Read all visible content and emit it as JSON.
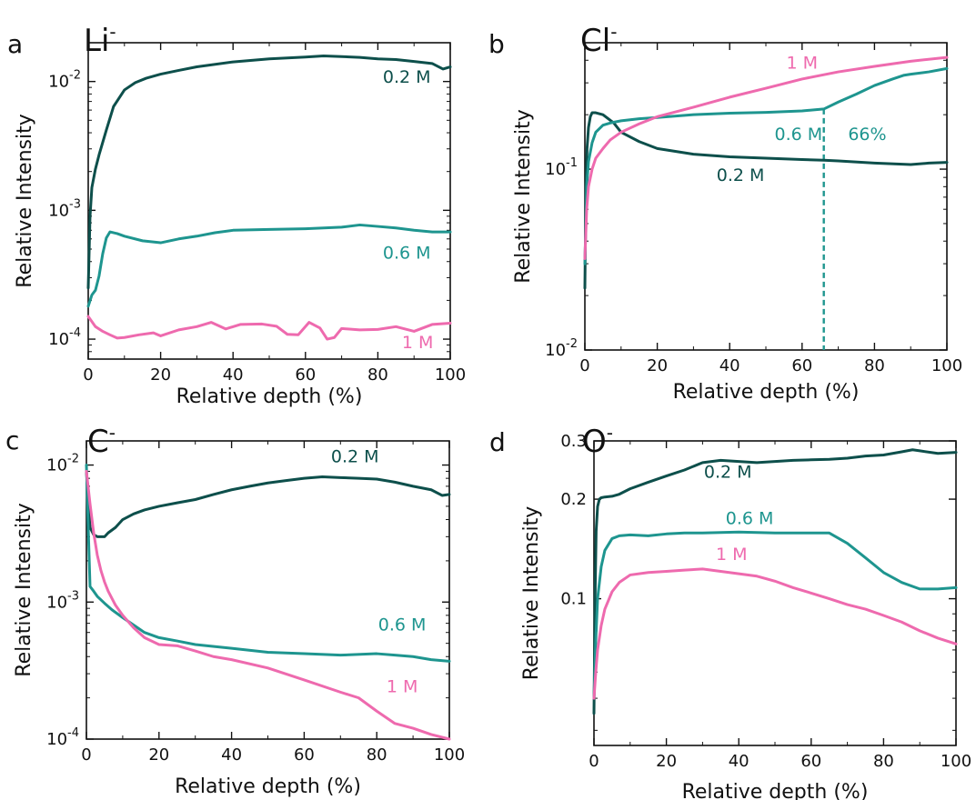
{
  "colors": {
    "0.2 M": "#0d4f4b",
    "0.6 M": "#1e958f",
    "1 M": "#ee6aae"
  },
  "chart_data": [
    {
      "type": "line",
      "panel": "a",
      "ion": "Li",
      "ion_sup": "-",
      "xlabel": "Relative depth (%)",
      "ylabel": "Relative Intensity",
      "xlim": [
        0,
        100
      ],
      "ylim": [
        7e-05,
        0.02
      ],
      "yscale": "log",
      "xticks": [
        0,
        20,
        40,
        60,
        80,
        100
      ],
      "yticks": [
        0.0001,
        0.001,
        0.01
      ],
      "ytick_labels": [
        {
          "base": "10",
          "exp": "-4"
        },
        {
          "base": "10",
          "exp": "-3"
        },
        {
          "base": "10",
          "exp": "-2"
        }
      ],
      "series": [
        {
          "name": "0.2 M",
          "x": [
            0,
            0.5,
            1,
            2,
            3,
            5,
            7,
            10,
            13,
            16,
            20,
            25,
            30,
            40,
            50,
            60,
            65,
            70,
            75,
            80,
            85,
            90,
            95,
            98,
            100
          ],
          "y": [
            0.00025,
            0.0009,
            0.0015,
            0.0021,
            0.0027,
            0.0042,
            0.0064,
            0.0086,
            0.0098,
            0.0106,
            0.0114,
            0.0122,
            0.013,
            0.0142,
            0.015,
            0.0155,
            0.0158,
            0.0156,
            0.0154,
            0.015,
            0.0148,
            0.0143,
            0.0138,
            0.0125,
            0.013
          ]
        },
        {
          "name": "0.6 M",
          "x": [
            0,
            1,
            2,
            3,
            4,
            5,
            6,
            8,
            10,
            15,
            20,
            25,
            30,
            35,
            40,
            50,
            60,
            70,
            75,
            80,
            85,
            90,
            95,
            100
          ],
          "y": [
            0.00018,
            0.00022,
            0.00024,
            0.00031,
            0.00046,
            0.00061,
            0.00068,
            0.00066,
            0.00063,
            0.00058,
            0.00056,
            0.0006,
            0.00063,
            0.00067,
            0.0007,
            0.00071,
            0.00072,
            0.00074,
            0.00077,
            0.00075,
            0.00073,
            0.0007,
            0.00068,
            0.00068
          ]
        },
        {
          "name": "1 M",
          "x": [
            0,
            2,
            4,
            6,
            8,
            10,
            14,
            18,
            20,
            25,
            30,
            34,
            38,
            42,
            48,
            52,
            55,
            58,
            61,
            64,
            66,
            68,
            70,
            75,
            80,
            85,
            90,
            95,
            100
          ],
          "y": [
            0.00015,
            0.000125,
            0.000115,
            0.000108,
            0.000102,
            0.000103,
            0.000108,
            0.000112,
            0.000106,
            0.000118,
            0.000125,
            0.000135,
            0.00012,
            0.00013,
            0.000131,
            0.000126,
            0.000109,
            0.000108,
            0.000135,
            0.000122,
            0.0001,
            0.000103,
            0.000121,
            0.000118,
            0.000119,
            0.000125,
            0.000115,
            0.00013,
            0.000133
          ]
        }
      ],
      "labels": [
        {
          "series": "0.2 M",
          "text": "0.2 M",
          "x": 88,
          "y": 0.0098
        },
        {
          "series": "0.6 M",
          "text": "0.6 M",
          "x": 88,
          "y": 0.00042
        },
        {
          "series": "1 M",
          "text": "1 M",
          "x": 91,
          "y": 8.5e-05
        }
      ]
    },
    {
      "type": "line",
      "panel": "b",
      "ion": "Cl",
      "ion_sup": "-",
      "xlabel": "Relative depth (%)",
      "ylabel": "Relative Intensity",
      "xlim": [
        0,
        100
      ],
      "ylim": [
        0.01,
        0.5
      ],
      "yscale": "log",
      "xticks": [
        0,
        20,
        40,
        60,
        80,
        100
      ],
      "yticks": [
        0.01,
        0.1
      ],
      "ytick_labels": [
        {
          "base": "10",
          "exp": "-2"
        },
        {
          "base": "10",
          "exp": "-1"
        }
      ],
      "series": [
        {
          "name": "0.2 M",
          "x": [
            0,
            0.3,
            0.6,
            1,
            1.5,
            2,
            3,
            5,
            8,
            10,
            15,
            20,
            30,
            40,
            50,
            60,
            66,
            70,
            80,
            90,
            95,
            100
          ],
          "y": [
            0.022,
            0.08,
            0.13,
            0.17,
            0.195,
            0.205,
            0.205,
            0.2,
            0.18,
            0.16,
            0.142,
            0.13,
            0.121,
            0.117,
            0.115,
            0.113,
            0.112,
            0.111,
            0.108,
            0.106,
            0.108,
            0.109
          ]
        },
        {
          "name": "0.6 M",
          "x": [
            0,
            0.5,
            1,
            2,
            3,
            5,
            7,
            10,
            15,
            20,
            30,
            40,
            50,
            60,
            66,
            70,
            75,
            80,
            85,
            88,
            90,
            95,
            100
          ],
          "y": [
            0.03,
            0.08,
            0.11,
            0.14,
            0.16,
            0.175,
            0.18,
            0.185,
            0.19,
            0.193,
            0.2,
            0.204,
            0.206,
            0.21,
            0.215,
            0.235,
            0.26,
            0.29,
            0.315,
            0.33,
            0.335,
            0.345,
            0.36
          ]
        },
        {
          "name": "1 M",
          "x": [
            0,
            0.5,
            1,
            2,
            3,
            5,
            7,
            10,
            15,
            20,
            30,
            40,
            50,
            60,
            70,
            80,
            90,
            100
          ],
          "y": [
            0.032,
            0.06,
            0.08,
            0.1,
            0.115,
            0.13,
            0.145,
            0.16,
            0.178,
            0.195,
            0.22,
            0.25,
            0.28,
            0.315,
            0.345,
            0.37,
            0.395,
            0.415
          ]
        }
      ],
      "markers": [
        {
          "x": 66,
          "text": "66%"
        }
      ],
      "labels": [
        {
          "series": "1 M",
          "text": "1 M",
          "x": 60,
          "y": 0.36
        },
        {
          "series": "0.6 M",
          "text": "0.6 M",
          "x": 59,
          "y": 0.145
        },
        {
          "series": "0.6 M",
          "text": "66%",
          "x": 78,
          "y": 0.145
        },
        {
          "series": "0.2 M",
          "text": "0.2 M",
          "x": 43,
          "y": 0.086
        }
      ]
    },
    {
      "type": "line",
      "panel": "c",
      "ion": "C",
      "ion_sup": "-",
      "xlabel": "Relative depth (%)",
      "ylabel": "Relative Intensity",
      "xlim": [
        0,
        100
      ],
      "ylim": [
        0.0001,
        0.015
      ],
      "yscale": "log",
      "xticks": [
        0,
        20,
        40,
        60,
        80,
        100
      ],
      "yticks": [
        0.0001,
        0.001,
        0.01
      ],
      "ytick_labels": [
        {
          "base": "10",
          "exp": "-4"
        },
        {
          "base": "10",
          "exp": "-3"
        },
        {
          "base": "10",
          "exp": "-2"
        }
      ],
      "series": [
        {
          "name": "0.2 M",
          "x": [
            0,
            1,
            2,
            3,
            4,
            5,
            6,
            8,
            10,
            13,
            16,
            20,
            25,
            30,
            35,
            40,
            45,
            50,
            55,
            60,
            65,
            70,
            75,
            80,
            85,
            90,
            95,
            98,
            100
          ],
          "y": [
            0.009,
            0.0035,
            0.0031,
            0.003,
            0.003,
            0.003,
            0.0032,
            0.0035,
            0.004,
            0.0044,
            0.0047,
            0.005,
            0.0053,
            0.0056,
            0.0061,
            0.0066,
            0.007,
            0.0074,
            0.0077,
            0.008,
            0.0082,
            0.0081,
            0.008,
            0.0079,
            0.0075,
            0.007,
            0.0066,
            0.006,
            0.0061
          ]
        },
        {
          "name": "0.6 M",
          "x": [
            0,
            0.5,
            1,
            2,
            3,
            5,
            7,
            10,
            13,
            16,
            20,
            25,
            30,
            40,
            50,
            60,
            70,
            80,
            85,
            90,
            95,
            100
          ],
          "y": [
            0.01,
            0.0035,
            0.0013,
            0.0012,
            0.0011,
            0.00098,
            0.00088,
            0.00077,
            0.00068,
            0.0006,
            0.00055,
            0.00052,
            0.00049,
            0.00046,
            0.00043,
            0.00042,
            0.00041,
            0.00042,
            0.00041,
            0.0004,
            0.00038,
            0.00037
          ]
        },
        {
          "name": "1 M",
          "x": [
            0,
            1,
            2,
            3,
            4,
            5,
            6,
            8,
            10,
            13,
            16,
            20,
            25,
            30,
            35,
            40,
            50,
            60,
            70,
            75,
            80,
            85,
            90,
            95,
            100
          ],
          "y": [
            0.009,
            0.0052,
            0.0032,
            0.0022,
            0.0017,
            0.0014,
            0.0012,
            0.00095,
            0.0008,
            0.00065,
            0.00055,
            0.00049,
            0.00048,
            0.00044,
            0.0004,
            0.00038,
            0.00033,
            0.00027,
            0.00022,
            0.0002,
            0.00016,
            0.00013,
            0.00012,
            0.000108,
            0.0001
          ]
        }
      ],
      "labels": [
        {
          "series": "0.2 M",
          "text": "0.2 M",
          "x": 74,
          "y": 0.0105
        },
        {
          "series": "0.6 M",
          "text": "0.6 M",
          "x": 87,
          "y": 0.00062
        },
        {
          "series": "1 M",
          "text": "1 M",
          "x": 87,
          "y": 0.00022
        }
      ]
    },
    {
      "type": "line",
      "panel": "d",
      "ion": "O",
      "ion_sup": "-",
      "xlabel": "Relative depth (%)",
      "ylabel": "Relative Intensity",
      "xlim": [
        0,
        100
      ],
      "ylim": [
        0.036,
        0.3
      ],
      "yscale": "log",
      "xticks": [
        0,
        20,
        40,
        60,
        80,
        100
      ],
      "yticks": [
        0.1,
        0.2,
        0.3
      ],
      "ytick_labels": [
        {
          "base": "0.1",
          "exp": ""
        },
        {
          "base": "0.2",
          "exp": ""
        },
        {
          "base": "0.3",
          "exp": ""
        }
      ],
      "series": [
        {
          "name": "0.2 M",
          "x": [
            0,
            0.3,
            0.6,
            1,
            1.5,
            2,
            3,
            5,
            7,
            10,
            15,
            20,
            25,
            30,
            35,
            40,
            45,
            50,
            55,
            60,
            65,
            70,
            75,
            80,
            85,
            88,
            90,
            95,
            100
          ],
          "y": [
            0.045,
            0.1,
            0.16,
            0.19,
            0.2,
            0.202,
            0.203,
            0.204,
            0.207,
            0.215,
            0.225,
            0.235,
            0.245,
            0.258,
            0.262,
            0.26,
            0.258,
            0.26,
            0.262,
            0.263,
            0.264,
            0.266,
            0.27,
            0.272,
            0.278,
            0.282,
            0.28,
            0.275,
            0.277
          ]
        },
        {
          "name": "0.6 M",
          "x": [
            0,
            0.5,
            1,
            2,
            3,
            5,
            7,
            10,
            15,
            20,
            25,
            30,
            40,
            50,
            60,
            65,
            70,
            75,
            80,
            85,
            90,
            95,
            100
          ],
          "y": [
            0.05,
            0.075,
            0.1,
            0.125,
            0.14,
            0.152,
            0.155,
            0.156,
            0.155,
            0.157,
            0.158,
            0.158,
            0.159,
            0.158,
            0.158,
            0.158,
            0.147,
            0.133,
            0.12,
            0.112,
            0.107,
            0.107,
            0.108
          ]
        },
        {
          "name": "1 M",
          "x": [
            0,
            0.5,
            1,
            2,
            3,
            5,
            7,
            10,
            15,
            20,
            25,
            30,
            35,
            40,
            45,
            50,
            55,
            60,
            65,
            70,
            75,
            80,
            85,
            90,
            95,
            100
          ],
          "y": [
            0.05,
            0.06,
            0.07,
            0.083,
            0.093,
            0.105,
            0.112,
            0.118,
            0.12,
            0.121,
            0.122,
            0.123,
            0.121,
            0.119,
            0.117,
            0.113,
            0.108,
            0.104,
            0.1,
            0.096,
            0.093,
            0.089,
            0.085,
            0.08,
            0.076,
            0.073
          ]
        }
      ],
      "labels": [
        {
          "series": "0.2 M",
          "text": "0.2 M",
          "x": 37,
          "y": 0.232
        },
        {
          "series": "0.6 M",
          "text": "0.6 M",
          "x": 43,
          "y": 0.168
        },
        {
          "series": "1 M",
          "text": "1 M",
          "x": 38,
          "y": 0.131
        }
      ]
    }
  ]
}
